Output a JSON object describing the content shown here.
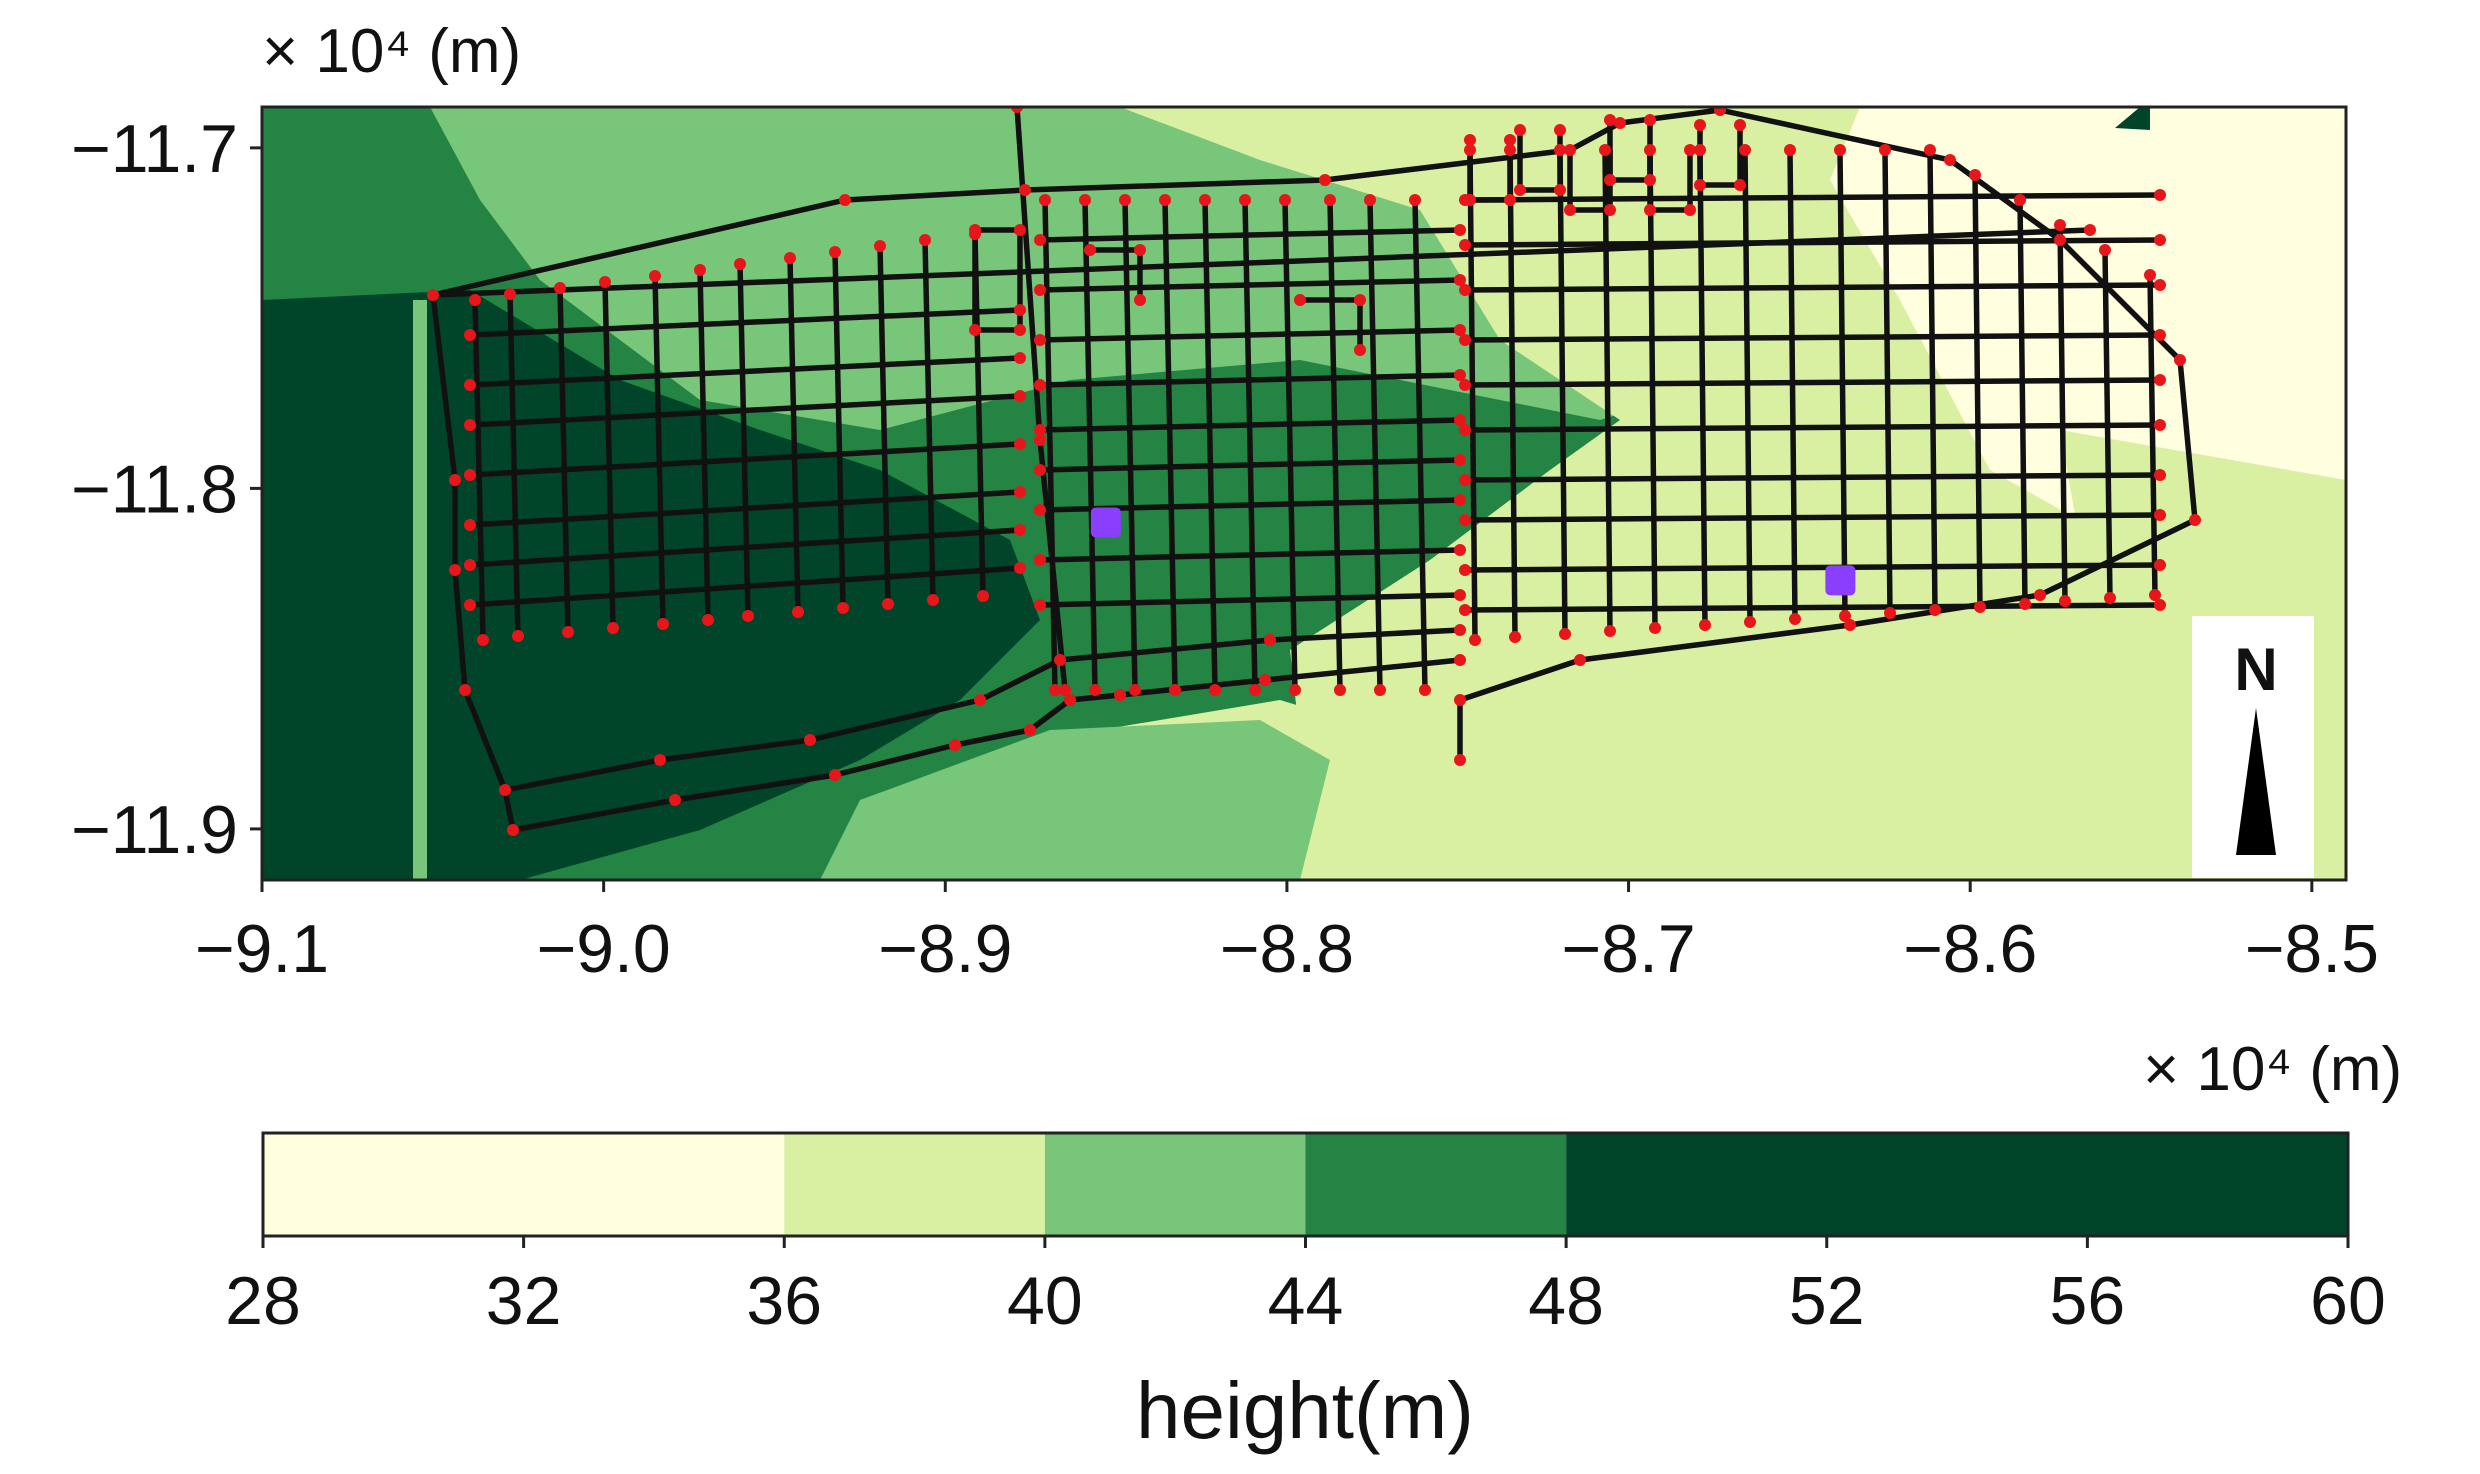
{
  "chart_data": [
    {
      "type": "map",
      "x_multiplier_label": "× 10⁴ (m)",
      "y_multiplier_label": "× 10⁴ (m)",
      "x_unit_text": "(m)",
      "y_unit_text": "(m)",
      "xlim": [
        -9.1,
        -8.49
      ],
      "ylim": [
        -11.915,
        -11.688
      ],
      "x_ticks": [
        {
          "value": -9.1,
          "label": "−9.1"
        },
        {
          "value": -9.0,
          "label": "−9.0"
        },
        {
          "value": -8.9,
          "label": "−8.9"
        },
        {
          "value": -8.8,
          "label": "−8.8"
        },
        {
          "value": -8.7,
          "label": "−8.7"
        },
        {
          "value": -8.6,
          "label": "−8.6"
        },
        {
          "value": -8.5,
          "label": "−8.5"
        }
      ],
      "y_ticks": [
        {
          "value": -11.7,
          "label": "−11.7"
        },
        {
          "value": -11.8,
          "label": "−11.8"
        },
        {
          "value": -11.9,
          "label": "−11.9"
        }
      ],
      "north_arrow_label": "N",
      "legend": "none",
      "terrain_colors": {
        "h28_36": "#ffffe0",
        "h36_40": "#d9f0a3",
        "h40_44": "#78c679",
        "h44_48": "#238443",
        "h48_60": "#004529"
      },
      "road_color": "#111111",
      "node_color": "#e8161b",
      "source_color": "#8a3ffc",
      "source_nodes": [
        {
          "x": -8.853,
          "y": -11.81
        },
        {
          "x": -8.638,
          "y": -11.827
        }
      ]
    },
    {
      "type": "colorbar",
      "xlabel": "height(m)",
      "multiplier_label": "× 10⁴ (m)",
      "range": [
        28,
        60
      ],
      "ticks": [
        {
          "value": 28,
          "label": "28"
        },
        {
          "value": 32,
          "label": "32"
        },
        {
          "value": 36,
          "label": "36"
        },
        {
          "value": 40,
          "label": "40"
        },
        {
          "value": 44,
          "label": "44"
        },
        {
          "value": 48,
          "label": "48"
        },
        {
          "value": 52,
          "label": "52"
        },
        {
          "value": 56,
          "label": "56"
        },
        {
          "value": 60,
          "label": "60"
        }
      ],
      "bins": [
        {
          "from": 28,
          "to": 36,
          "color": "#ffffe0"
        },
        {
          "from": 36,
          "to": 40,
          "color": "#d9f0a3"
        },
        {
          "from": 40,
          "to": 44,
          "color": "#78c679"
        },
        {
          "from": 44,
          "to": 48,
          "color": "#238443"
        },
        {
          "from": 48,
          "to": 60,
          "color": "#004529"
        }
      ]
    }
  ]
}
